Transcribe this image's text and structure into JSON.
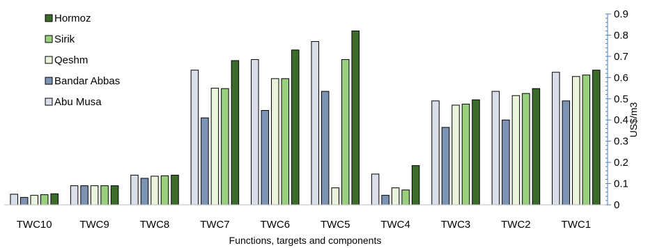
{
  "chart_data": {
    "type": "bar",
    "xlabel": "Functions, targets and components",
    "ylabel": "US$/m3",
    "ylim": [
      0,
      0.9
    ],
    "yticks": [
      "0",
      "0.1",
      "0.2",
      "0.3",
      "0.4",
      "0.5",
      "0.6",
      "0.7",
      "0.8",
      "0.9"
    ],
    "y_axis_position": "right",
    "legend_position": "top-left",
    "grid": false,
    "categories": [
      "TWC10",
      "TWC9",
      "TWC8",
      "TWC7",
      "TWC6",
      "TWC5",
      "TWC4",
      "TWC3",
      "TWC2",
      "TWC1"
    ],
    "series": [
      {
        "name": "Abu Musa",
        "color": "#d9dee8",
        "values": [
          0.05,
          0.09,
          0.14,
          0.635,
          0.685,
          0.77,
          0.145,
          0.49,
          0.535,
          0.625
        ]
      },
      {
        "name": "Bandar Abbas",
        "color": "#7d93b4",
        "values": [
          0.035,
          0.09,
          0.125,
          0.41,
          0.445,
          0.535,
          0.045,
          0.365,
          0.4,
          0.49
        ]
      },
      {
        "name": "Qeshm",
        "color": "#eaf4dc",
        "values": [
          0.045,
          0.09,
          0.135,
          0.55,
          0.595,
          0.08,
          0.08,
          0.47,
          0.515,
          0.605
        ]
      },
      {
        "name": "Sirik",
        "color": "#9bcf80",
        "values": [
          0.048,
          0.09,
          0.137,
          0.548,
          0.595,
          0.685,
          0.07,
          0.475,
          0.525,
          0.612
        ]
      },
      {
        "name": "Hormoz",
        "color": "#3d6b2b",
        "values": [
          0.052,
          0.09,
          0.14,
          0.68,
          0.73,
          0.82,
          0.185,
          0.495,
          0.548,
          0.635
        ]
      }
    ]
  }
}
